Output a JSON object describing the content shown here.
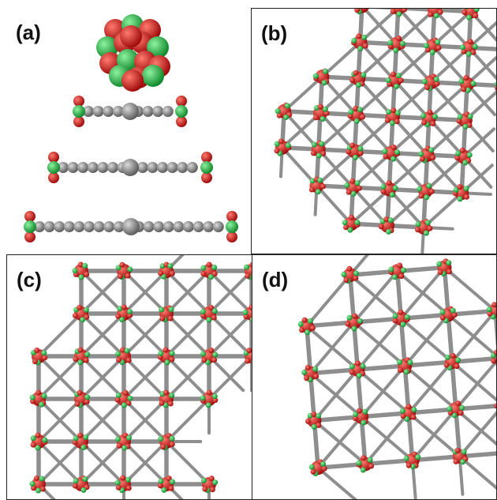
{
  "figure": {
    "panels": [
      {
        "label": "(a)"
      },
      {
        "label": "(b)"
      },
      {
        "label": "(c)"
      },
      {
        "label": "(d)"
      }
    ]
  },
  "colors": {
    "carbon_gray": "#8c8c8c",
    "oxygen_red": "#e02020",
    "metal_green": "#2bb84a",
    "frame": "#222222"
  }
}
